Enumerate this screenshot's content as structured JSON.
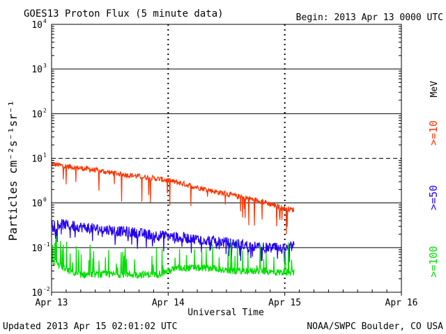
{
  "header": {
    "title": "GOES13 Proton Flux (5 minute data)",
    "begin": "Begin: 2013 Apr 13 0000 UTC"
  },
  "footer": {
    "updated": "Updated 2013 Apr 15 02:01:02 UTC",
    "credit": "NOAA/SWPC Boulder, CO USA"
  },
  "colors": {
    "mev10": "#ff3300",
    "mev50": "#2200ee",
    "mev100": "#00dd00"
  },
  "chart_data": {
    "type": "line",
    "title": "GOES13 Proton Flux (5 minute data)",
    "xlabel": "Universal Time",
    "ylabel": "Particles cm⁻²s⁻¹sr⁻¹",
    "yscale": "log",
    "ylim": [
      0.01,
      10000
    ],
    "xlim": [
      0,
      3
    ],
    "x_unit": "days since 2013 Apr 13 0000 UTC",
    "x_ticks": [
      {
        "value": 0,
        "label": "Apr 13"
      },
      {
        "value": 1,
        "label": "Apr 14"
      },
      {
        "value": 2,
        "label": "Apr 15"
      },
      {
        "value": 3,
        "label": "Apr 16"
      }
    ],
    "y_ticks": [
      {
        "value": 0.01,
        "base": "10",
        "exp": "-2"
      },
      {
        "value": 0.1,
        "base": "10",
        "exp": "-1"
      },
      {
        "value": 1,
        "base": "10",
        "exp": "0"
      },
      {
        "value": 10,
        "base": "10",
        "exp": "1"
      },
      {
        "value": 100,
        "base": "10",
        "exp": "2"
      },
      {
        "value": 1000,
        "base": "10",
        "exp": "3"
      },
      {
        "value": 10000,
        "base": "10",
        "exp": "4"
      }
    ],
    "threshold": 10,
    "legend_unit": "MeV",
    "series": [
      {
        "name": ">=10",
        "color": "#ff3300",
        "x": [
          0,
          0.1,
          0.2,
          0.3,
          0.4,
          0.5,
          0.6,
          0.7,
          0.8,
          0.9,
          1.0,
          1.1,
          1.2,
          1.3,
          1.4,
          1.5,
          1.6,
          1.7,
          1.8,
          1.9,
          2.0,
          2.08
        ],
        "values": [
          7.5,
          6.8,
          6.2,
          5.8,
          5.3,
          4.8,
          4.4,
          4.1,
          3.8,
          3.5,
          3.2,
          2.8,
          2.4,
          2.1,
          1.8,
          1.6,
          1.4,
          1.25,
          1.1,
          0.9,
          0.75,
          0.7
        ]
      },
      {
        "name": ">=50",
        "color": "#2200ee",
        "x": [
          0,
          0.1,
          0.2,
          0.3,
          0.4,
          0.5,
          0.6,
          0.7,
          0.8,
          0.9,
          1.0,
          1.1,
          1.2,
          1.3,
          1.4,
          1.5,
          1.6,
          1.7,
          1.8,
          1.9,
          2.0,
          2.08
        ],
        "values": [
          0.35,
          0.33,
          0.3,
          0.28,
          0.26,
          0.25,
          0.23,
          0.22,
          0.2,
          0.19,
          0.18,
          0.17,
          0.16,
          0.15,
          0.14,
          0.13,
          0.12,
          0.11,
          0.1,
          0.1,
          0.09,
          0.11
        ]
      },
      {
        "name": ">=100",
        "color": "#00dd00",
        "x": [
          0,
          0.1,
          0.2,
          0.3,
          0.4,
          0.5,
          0.6,
          0.7,
          0.8,
          0.9,
          1.0,
          1.1,
          1.2,
          1.3,
          1.4,
          1.5,
          1.6,
          1.7,
          1.8,
          1.9,
          2.0,
          2.08
        ],
        "values": [
          0.05,
          0.035,
          0.025,
          0.025,
          0.025,
          0.025,
          0.025,
          0.025,
          0.025,
          0.025,
          0.03,
          0.035,
          0.035,
          0.035,
          0.035,
          0.03,
          0.03,
          0.03,
          0.03,
          0.028,
          0.028,
          0.028
        ]
      }
    ]
  }
}
